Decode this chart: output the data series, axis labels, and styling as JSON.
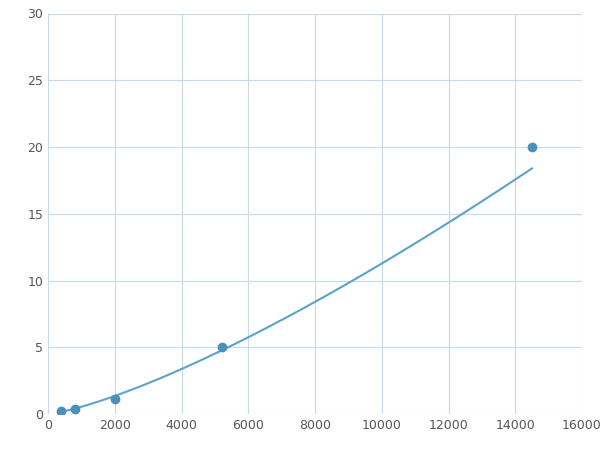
{
  "x_points": [
    400,
    800,
    2000,
    5200,
    14500
  ],
  "y_points": [
    0.2,
    0.35,
    1.1,
    5.0,
    20.0
  ],
  "line_color": "#5ba3c9",
  "marker_color": "#4a90b8",
  "marker_size": 6,
  "xlim": [
    0,
    16000
  ],
  "ylim": [
    0,
    30
  ],
  "xticks": [
    0,
    2000,
    4000,
    6000,
    8000,
    10000,
    12000,
    14000,
    16000
  ],
  "yticks": [
    0,
    5,
    10,
    15,
    20,
    25,
    30
  ],
  "grid_color": "#c8dae8",
  "background_color": "#ffffff",
  "line_width": 1.5,
  "figsize": [
    6.0,
    4.5
  ],
  "dpi": 100
}
